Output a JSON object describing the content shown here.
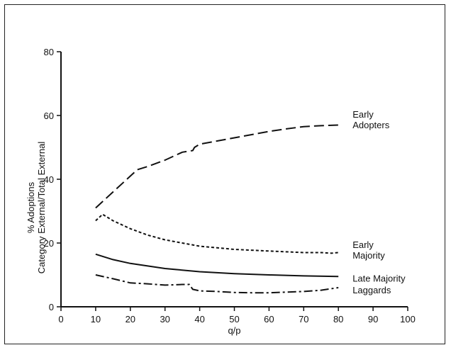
{
  "chart_data": {
    "type": "line",
    "xlabel": "q/p",
    "ylabel_lines": [
      "% Adoptions",
      "Category External/Total External"
    ],
    "xlim": [
      0,
      100
    ],
    "ylim": [
      0,
      80
    ],
    "x_ticks": [
      "0",
      "10",
      "20",
      "30",
      "40",
      "50",
      "60",
      "70",
      "80",
      "90",
      "100"
    ],
    "y_ticks": [
      "0",
      "20",
      "40",
      "60",
      "80"
    ],
    "grid": false,
    "legend": "inline labels at right end of lines",
    "series": [
      {
        "name_lines": [
          "Early",
          "Adopters"
        ],
        "style": "long-dash",
        "x": [
          10,
          15,
          20,
          22,
          25,
          30,
          35,
          38,
          38.5,
          40,
          45,
          50,
          55,
          60,
          65,
          70,
          75,
          80
        ],
        "y": [
          31,
          36,
          41,
          43,
          44,
          46,
          48.5,
          49,
          50,
          51,
          52,
          53,
          54,
          55,
          55.8,
          56.5,
          56.8,
          57
        ]
      },
      {
        "name_lines": [
          "Early",
          "Majority"
        ],
        "style": "short-dash",
        "x": [
          10,
          12,
          15,
          20,
          25,
          30,
          40,
          50,
          60,
          70,
          75,
          78,
          80
        ],
        "y": [
          27,
          29,
          27,
          24.5,
          22.5,
          21,
          19,
          18,
          17.5,
          17,
          17,
          16.8,
          17
        ]
      },
      {
        "name_lines": [
          "Late Majority"
        ],
        "style": "solid",
        "x": [
          10,
          15,
          20,
          25,
          30,
          40,
          50,
          60,
          70,
          80
        ],
        "y": [
          16.5,
          14.8,
          13.6,
          12.8,
          12,
          11,
          10.4,
          10,
          9.7,
          9.5
        ]
      },
      {
        "name_lines": [
          "Laggards"
        ],
        "style": "dash-dot",
        "x": [
          10,
          15,
          20,
          25,
          30,
          35,
          37,
          38,
          40,
          45,
          50,
          55,
          60,
          65,
          70,
          75,
          80
        ],
        "y": [
          10,
          8.8,
          7.5,
          7.2,
          6.8,
          7,
          7,
          5.5,
          5,
          4.8,
          4.5,
          4.4,
          4.4,
          4.6,
          4.8,
          5.2,
          6
        ]
      }
    ]
  }
}
